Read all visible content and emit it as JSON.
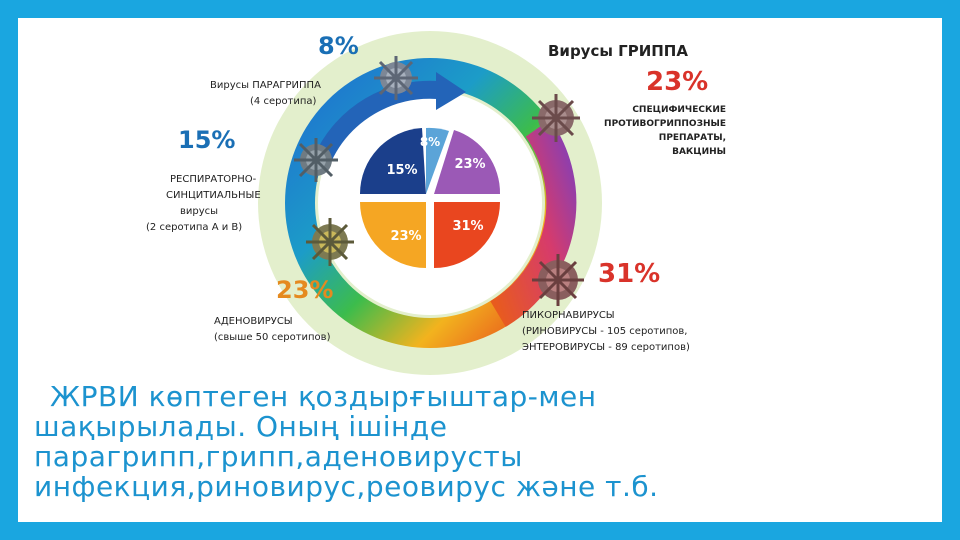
{
  "slide": {
    "background": "#1aa6e0",
    "caption_lines": [
      "ЖРВИ көптеген қоздырғыштар-мен",
      "шақырылады. Оның ішінде",
      "парагрипп,грипп,аденовирусты",
      "инфекция,риновирус,реовирус және т.б."
    ]
  },
  "segments": {
    "paraflu": {
      "percent": "8%",
      "name": "Вирусы ПАРАГРИППА",
      "note": "(4 серотипа)",
      "color": "#5ba4d8"
    },
    "flu": {
      "percent": "23%",
      "name": "Вирусы ГРИППА",
      "note_lines": [
        "СПЕЦИФИЧЕСКИЕ",
        "ПРОТИВОГРИППОЗНЫЕ",
        "ПРЕПАРАТЫ,",
        "ВАКЦИНЫ"
      ],
      "color": "#9b59b6"
    },
    "rsv": {
      "percent": "15%",
      "name_lines": [
        "РЕСПИРАТОРНО-",
        "СИНЦИТИАЛЬНЫЕ"
      ],
      "note_lines": [
        "вирусы",
        "(2 серотипа А и В)"
      ],
      "color": "#1b3f8b"
    },
    "adeno": {
      "percent": "23%",
      "name": "АДЕНОВИРУСЫ",
      "note": "(свыше 50 серотипов)",
      "color": "#f5a623"
    },
    "picorna": {
      "percent": "31%",
      "name": "ПИКОРНАВИРУСЫ",
      "note_lines": [
        "(РИНОВИРУСЫ - 105 серотипов,",
        "ЭНТЕРОВИРУСЫ - 89 серотипов)"
      ],
      "color": "#e9461f"
    }
  },
  "colors": {
    "outer_ring": "#e3efcc",
    "heading_percent": "#1a6fb5",
    "red_percent": "#d9332a",
    "orange_percent": "#e58a1f",
    "caption": "#1c93cf"
  },
  "icons": [
    "virus-icon-paraflu",
    "virus-icon-flu",
    "virus-icon-rsv",
    "virus-icon-adeno",
    "virus-icon-picorna"
  ]
}
